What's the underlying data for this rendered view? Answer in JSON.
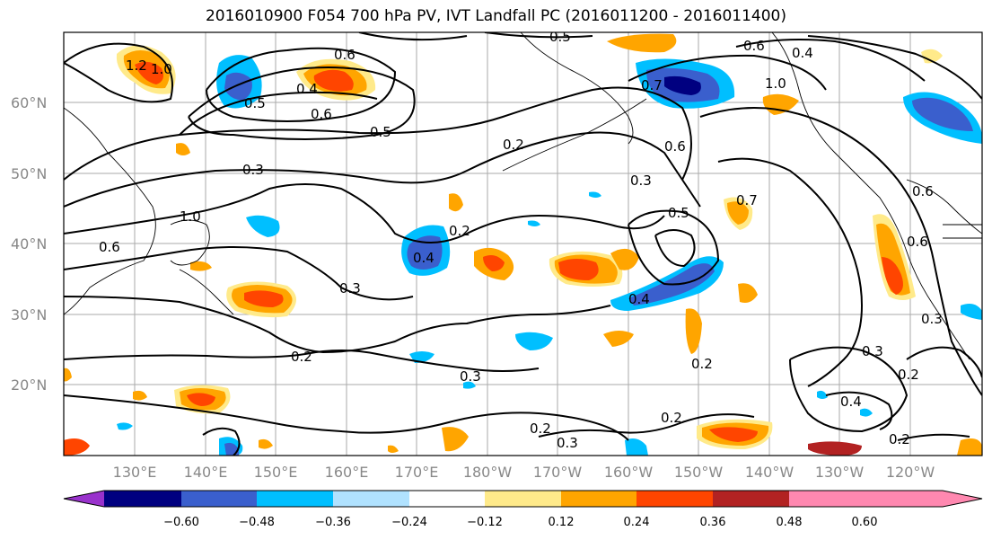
{
  "title": "2016010900 F054 700 hPa PV, IVT Landfall PC (2016011200 - 2016011400)",
  "map": {
    "lat_labels": [
      "60°N",
      "50°N",
      "40°N",
      "30°N",
      "20°N"
    ],
    "lon_labels": [
      "130°E",
      "140°E",
      "150°E",
      "160°E",
      "170°E",
      "180°W",
      "170°W",
      "160°W",
      "150°W",
      "140°W",
      "130°W",
      "120°W"
    ],
    "contour_labels": [
      "1.0",
      "1.2",
      "0.6",
      "0.6",
      "0.5",
      "0.4",
      "0.5",
      "0.3",
      "0.2",
      "1.0",
      "0.6",
      "0.3",
      "0.5",
      "0.2",
      "0.2",
      "0.4",
      "0.3",
      "0.6",
      "0.5",
      "0.3",
      "0.7",
      "0.4",
      "0.2",
      "0.3",
      "0.2",
      "0.3",
      "0.2",
      "0.4",
      "0.2",
      "0.3",
      "0.2",
      "0.6",
      "0.6",
      "0.7",
      "1.0",
      "0.6",
      "0.4"
    ]
  },
  "colorbar": {
    "colors": [
      "#9932cc",
      "#000080",
      "#3a5fcd",
      "#00bfff",
      "#b0e2ff",
      "#ffffff",
      "#ffea8a",
      "#ffa500",
      "#ff4500",
      "#b22222",
      "#ff88b0"
    ],
    "tick_labels": [
      "−0.60",
      "−0.48",
      "−0.36",
      "−0.24",
      "−0.12",
      "0.12",
      "0.24",
      "0.36",
      "0.48",
      "0.60"
    ]
  }
}
